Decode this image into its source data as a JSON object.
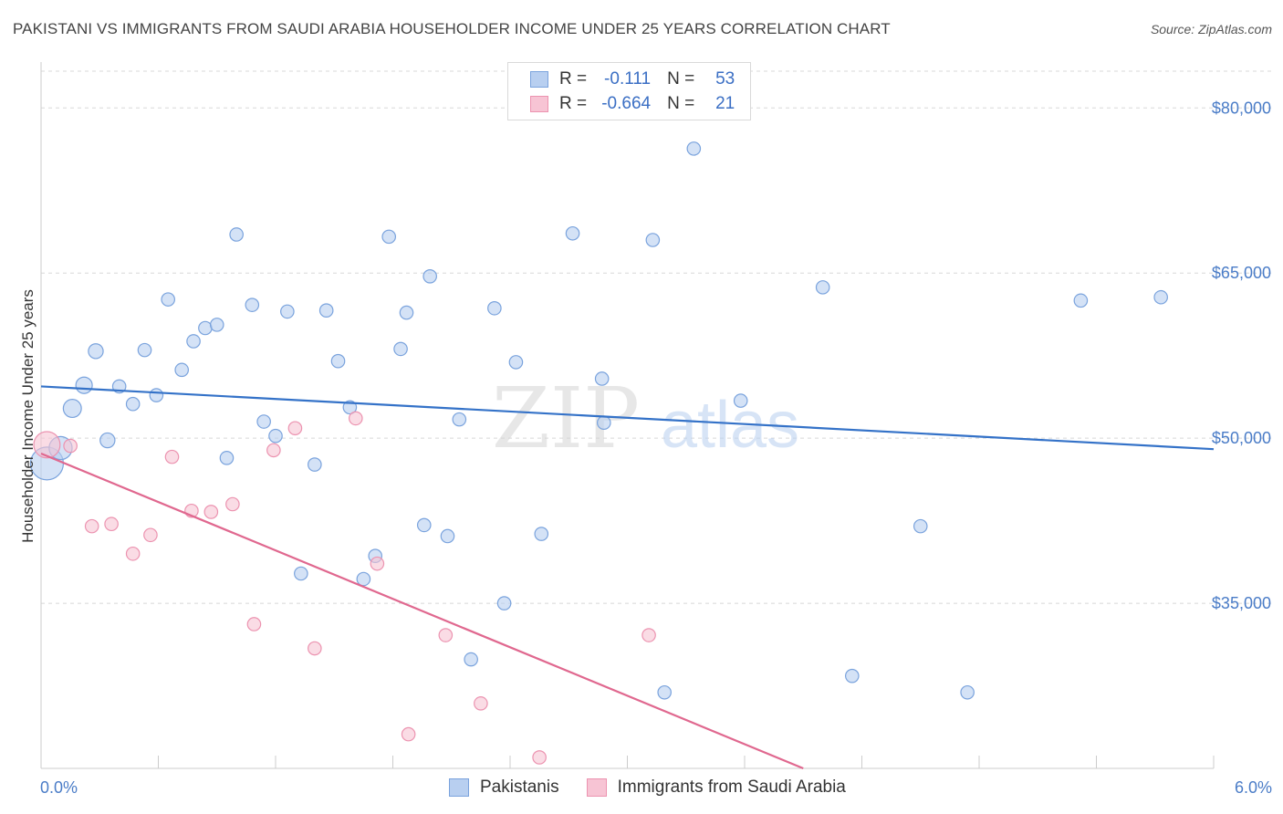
{
  "title": "PAKISTANI VS IMMIGRANTS FROM SAUDI ARABIA HOUSEHOLDER INCOME UNDER 25 YEARS CORRELATION CHART",
  "source": "Source: ZipAtlas.com",
  "watermark": {
    "zip": "ZIP",
    "atlas": "atlas"
  },
  "legend_stats": [
    {
      "r_label": "R =",
      "r_value": "-0.111",
      "n_label": "N =",
      "n_value": "53"
    },
    {
      "r_label": "R =",
      "r_value": "-0.664",
      "n_label": "N =",
      "n_value": "21"
    }
  ],
  "colors": {
    "blue_fill": "#b8cff0",
    "blue_stroke": "#7aa3dd",
    "blue_line": "#3472c8",
    "pink_fill": "#f7c4d4",
    "pink_stroke": "#ec93b0",
    "pink_line": "#e0688f",
    "grid": "#d8d8d8",
    "axis_text": "#4a7cc7"
  },
  "chart_data": {
    "type": "scatter",
    "title": "PAKISTANI VS IMMIGRANTS FROM SAUDI ARABIA HOUSEHOLDER INCOME UNDER 25 YEARS CORRELATION CHART",
    "xlabel": "",
    "ylabel": "Householder Income Under 25 years",
    "xlim": [
      0,
      6
    ],
    "ylim": [
      20000,
      84000
    ],
    "x_tick_labels": [
      {
        "value": 0,
        "label": "0.0%"
      },
      {
        "value": 6,
        "label": "6.0%"
      }
    ],
    "y_ticks": [
      {
        "value": 35000,
        "label": "$35,000"
      },
      {
        "value": 50000,
        "label": "$50,000"
      },
      {
        "value": 65000,
        "label": "$65,000"
      },
      {
        "value": 80000,
        "label": "$80,000"
      }
    ],
    "series": [
      {
        "name": "Pakistanis",
        "color": "#7aa3dd",
        "r": -0.111,
        "n": 53,
        "trend": {
          "x0": 0,
          "y0": 54700,
          "x1": 6,
          "y1": 49000
        },
        "points": [
          [
            0.03,
            47700,
            2.0
          ],
          [
            0.1,
            49100,
            1.4
          ],
          [
            0.16,
            52700,
            1.1
          ],
          [
            0.22,
            54800,
            1.0
          ],
          [
            0.28,
            57900,
            0.9
          ],
          [
            0.34,
            49800,
            0.9
          ],
          [
            0.4,
            54700,
            0.8
          ],
          [
            0.47,
            53100,
            0.8
          ],
          [
            0.53,
            58000,
            0.8
          ],
          [
            0.59,
            53900,
            0.8
          ],
          [
            0.65,
            62600,
            0.8
          ],
          [
            0.72,
            56200,
            0.8
          ],
          [
            0.78,
            58800,
            0.8
          ],
          [
            0.84,
            60000,
            0.8
          ],
          [
            0.9,
            60300,
            0.8
          ],
          [
            0.95,
            48200,
            0.8
          ],
          [
            1.0,
            68500,
            0.8
          ],
          [
            1.08,
            62100,
            0.8
          ],
          [
            1.14,
            51500,
            0.8
          ],
          [
            1.2,
            50200,
            0.8
          ],
          [
            1.26,
            61500,
            0.8
          ],
          [
            1.33,
            37700,
            0.8
          ],
          [
            1.4,
            47600,
            0.8
          ],
          [
            1.46,
            61600,
            0.8
          ],
          [
            1.52,
            57000,
            0.8
          ],
          [
            1.58,
            52800,
            0.8
          ],
          [
            1.65,
            37200,
            0.8
          ],
          [
            1.71,
            39300,
            0.8
          ],
          [
            1.78,
            68300,
            0.8
          ],
          [
            1.84,
            58100,
            0.8
          ],
          [
            1.87,
            61400,
            0.8
          ],
          [
            1.96,
            42100,
            0.8
          ],
          [
            1.99,
            64700,
            0.8
          ],
          [
            2.08,
            41100,
            0.8
          ],
          [
            2.14,
            51700,
            0.8
          ],
          [
            2.2,
            29900,
            0.8
          ],
          [
            2.32,
            61800,
            0.8
          ],
          [
            2.37,
            35000,
            0.8
          ],
          [
            2.43,
            56900,
            0.8
          ],
          [
            2.56,
            41300,
            0.8
          ],
          [
            2.72,
            68600,
            0.8
          ],
          [
            2.87,
            55400,
            0.8
          ],
          [
            2.88,
            51400,
            0.8
          ],
          [
            3.13,
            68000,
            0.8
          ],
          [
            3.19,
            26900,
            0.8
          ],
          [
            3.34,
            76300,
            0.8
          ],
          [
            3.58,
            53400,
            0.8
          ],
          [
            4.0,
            63700,
            0.8
          ],
          [
            4.15,
            28400,
            0.8
          ],
          [
            4.5,
            42000,
            0.8
          ],
          [
            4.74,
            26900,
            0.8
          ],
          [
            5.32,
            62500,
            0.8
          ],
          [
            5.73,
            62800,
            0.8
          ]
        ]
      },
      {
        "name": "Immigrants from Saudi Arabia",
        "color": "#ec93b0",
        "r": -0.664,
        "n": 21,
        "trend": {
          "x0": 0,
          "y0": 48600,
          "x1": 3.9,
          "y1": 20000
        },
        "points": [
          [
            0.03,
            49400,
            1.6
          ],
          [
            0.15,
            49300,
            0.8
          ],
          [
            0.26,
            42000,
            0.8
          ],
          [
            0.36,
            42200,
            0.8
          ],
          [
            0.47,
            39500,
            0.8
          ],
          [
            0.56,
            41200,
            0.8
          ],
          [
            0.67,
            48300,
            0.8
          ],
          [
            0.77,
            43400,
            0.8
          ],
          [
            0.87,
            43300,
            0.8
          ],
          [
            0.98,
            44000,
            0.8
          ],
          [
            1.09,
            33100,
            0.8
          ],
          [
            1.19,
            48900,
            0.8
          ],
          [
            1.3,
            50900,
            0.8
          ],
          [
            1.4,
            30900,
            0.8
          ],
          [
            1.61,
            51800,
            0.8
          ],
          [
            1.72,
            38600,
            0.8
          ],
          [
            1.88,
            23100,
            0.8
          ],
          [
            2.07,
            32100,
            0.8
          ],
          [
            2.25,
            25900,
            0.8
          ],
          [
            2.55,
            21000,
            0.8
          ],
          [
            3.11,
            32100,
            0.8
          ]
        ]
      }
    ]
  }
}
